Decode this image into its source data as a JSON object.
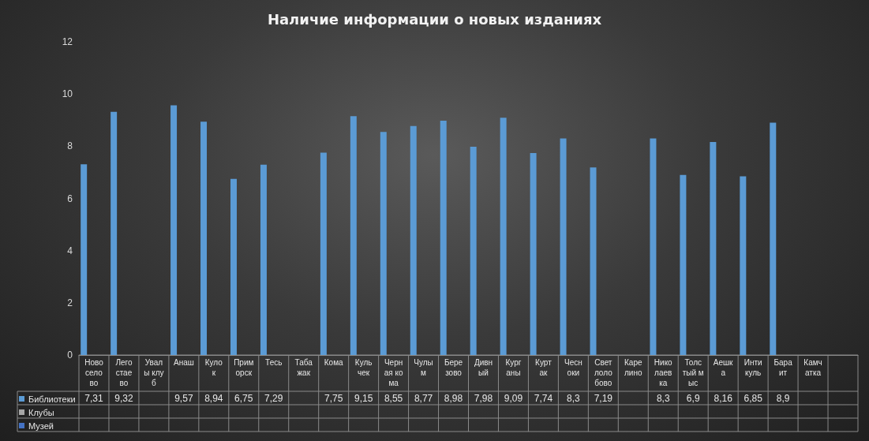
{
  "chart_data": {
    "type": "bar",
    "title": "Наличие информации о новых изданиях",
    "categories": [
      "Новоселово",
      "Легостаево",
      "Увалы клуб",
      "Анаш",
      "Кулок",
      "Приморск",
      "Тесь",
      "Табажак",
      "Кома",
      "Кульчек",
      "Черная кома",
      "Чулым",
      "Березово",
      "Дивный",
      "Курганы",
      "Куртак",
      "Чесноки",
      "Светлолобово",
      "Карелино",
      "Николаевка",
      "Толстый мыс",
      "Аешка",
      "Интикуль",
      "Бараит",
      "Камчатка",
      null
    ],
    "series": [
      {
        "name": "Библиотеки",
        "color": "#5b9bd5",
        "values": [
          7.31,
          9.32,
          null,
          9.57,
          8.94,
          6.75,
          7.29,
          null,
          7.75,
          9.15,
          8.55,
          8.77,
          8.98,
          7.98,
          9.09,
          7.74,
          8.3,
          7.19,
          null,
          8.3,
          6.9,
          8.16,
          6.85,
          8.9,
          null,
          null
        ],
        "value_labels": [
          "7,31",
          "9,32",
          null,
          "9,57",
          "8,94",
          "6,75",
          "7,29",
          null,
          "7,75",
          "9,15",
          "8,55",
          "8,77",
          "8,98",
          "7,98",
          "9,09",
          "7,74",
          "8,3",
          "7,19",
          null,
          "8,3",
          "6,9",
          "8,16",
          "6,85",
          "8,9",
          null,
          null
        ]
      },
      {
        "name": "Клубы",
        "color": "#a5a5a5",
        "values": [
          null,
          null,
          null,
          null,
          null,
          null,
          null,
          null,
          null,
          null,
          null,
          null,
          null,
          null,
          null,
          null,
          null,
          null,
          null,
          null,
          null,
          null,
          null,
          null,
          null,
          null
        ]
      },
      {
        "name": "Музей",
        "color": "#4472c4",
        "values": [
          null,
          null,
          null,
          null,
          null,
          null,
          null,
          null,
          null,
          null,
          null,
          null,
          null,
          null,
          null,
          null,
          null,
          null,
          null,
          null,
          null,
          null,
          null,
          null,
          null,
          null
        ]
      }
    ],
    "ylim": [
      0,
      12
    ],
    "yticks": [
      0,
      2,
      4,
      6,
      8,
      10,
      12
    ],
    "grid": false,
    "legend": "bottom left"
  }
}
